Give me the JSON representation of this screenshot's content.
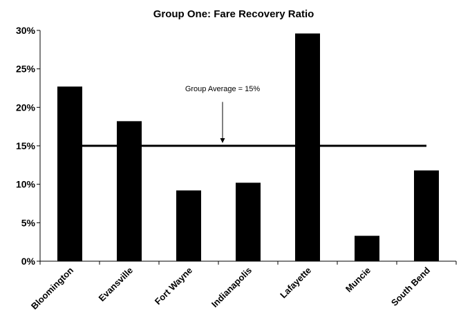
{
  "chart_data": {
    "type": "bar",
    "title": "Group One:  Fare Recovery Ratio",
    "xlabel": "",
    "ylabel": "",
    "categories": [
      "Bloomington",
      "Evansville",
      "Fort Wayne",
      "Indianapolis",
      "Lafayette",
      "Muncie",
      "South Bend"
    ],
    "values": [
      22.7,
      18.2,
      9.2,
      10.2,
      29.6,
      3.3,
      11.8
    ],
    "ylim": [
      0,
      30
    ],
    "yticks": [
      0,
      5,
      10,
      15,
      20,
      25,
      30
    ],
    "ytick_labels": [
      "0%",
      "5%",
      "10%",
      "15%",
      "20%",
      "25%",
      "30%"
    ],
    "grid": false,
    "bar_color": "#000000",
    "reference_line": {
      "value": 15,
      "color": "#000000"
    },
    "annotation": {
      "text": "Group Average = 15%"
    }
  }
}
